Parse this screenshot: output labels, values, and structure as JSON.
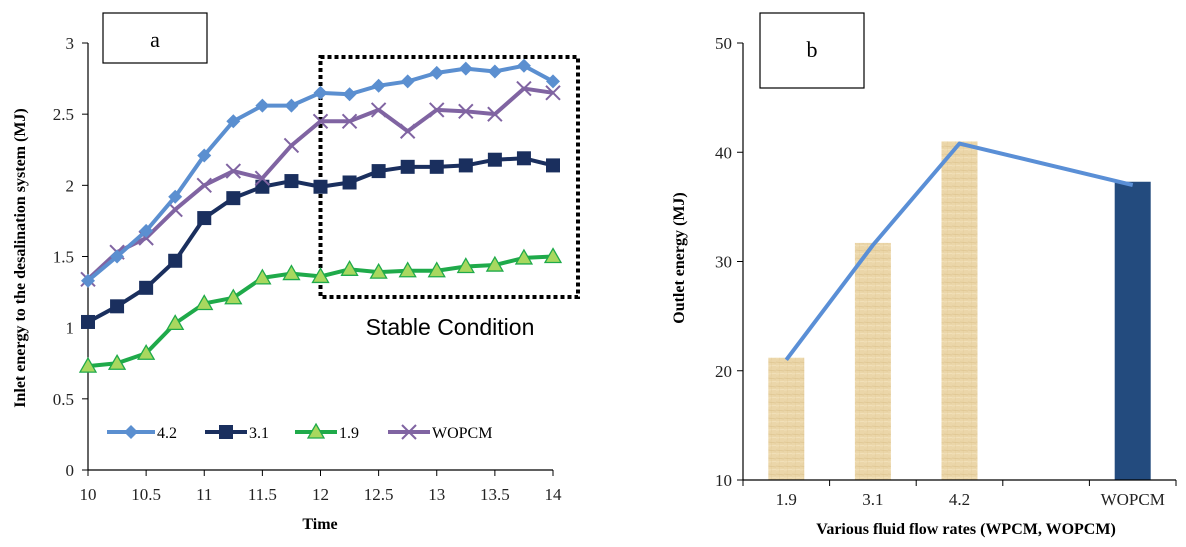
{
  "chart_data": [
    {
      "type": "line",
      "panel_label": "a",
      "xlabel": "Time",
      "ylabel": "Inlet energy to the desalination system (MJ)",
      "x": [
        10,
        10.25,
        10.5,
        10.75,
        11,
        11.25,
        11.5,
        11.75,
        12,
        12.25,
        12.5,
        12.75,
        13,
        13.25,
        13.5,
        13.75,
        14
      ],
      "xlim": [
        10,
        14
      ],
      "ylim": [
        0,
        3
      ],
      "xticks": [
        10,
        10.5,
        11,
        11.5,
        12,
        12.5,
        13,
        13.5,
        14
      ],
      "xtick_labels": [
        "10",
        "10.5",
        "11",
        "11.5",
        "12",
        "12.5",
        "13",
        "13.5",
        "14"
      ],
      "yticks": [
        0,
        0.5,
        1,
        1.5,
        2,
        2.5,
        3
      ],
      "ytick_labels": [
        "0",
        "0.5",
        "1",
        "1.5",
        "2",
        "2.5",
        "3"
      ],
      "grid": false,
      "legend_position": "bottom",
      "annotation": "Stable Condition",
      "stable_region": [
        12,
        14
      ],
      "series": [
        {
          "name": "4.2",
          "color": "#5B8FD0",
          "marker": "diamond",
          "values": [
            1.33,
            1.5,
            1.68,
            1.92,
            2.21,
            2.45,
            2.56,
            2.56,
            2.65,
            2.64,
            2.7,
            2.73,
            2.79,
            2.82,
            2.8,
            2.84,
            2.73
          ]
        },
        {
          "name": "3.1",
          "color": "#1A2F5E",
          "marker": "square",
          "values": [
            1.04,
            1.15,
            1.28,
            1.47,
            1.77,
            1.91,
            1.99,
            2.03,
            1.99,
            2.02,
            2.1,
            2.13,
            2.13,
            2.14,
            2.18,
            2.19,
            2.14
          ]
        },
        {
          "name": "1.9",
          "color": "#1FAA4A",
          "marker": "triangle",
          "values": [
            0.73,
            0.75,
            0.82,
            1.03,
            1.17,
            1.21,
            1.35,
            1.38,
            1.36,
            1.41,
            1.39,
            1.4,
            1.4,
            1.43,
            1.44,
            1.49,
            1.5
          ]
        },
        {
          "name": "WOPCM",
          "color": "#8064A2",
          "marker": "x",
          "values": [
            1.34,
            1.53,
            1.63,
            1.83,
            2.0,
            2.1,
            2.05,
            2.28,
            2.45,
            2.45,
            2.53,
            2.38,
            2.53,
            2.52,
            2.5,
            2.68,
            2.65
          ]
        }
      ]
    },
    {
      "type": "bar",
      "panel_label": "b",
      "xlabel": "Various fluid flow rates (WPCM, WOPCM)",
      "ylabel": "Outlet energy (MJ)",
      "categories": [
        "1.9",
        "3.1",
        "4.2",
        "",
        "WOPCM"
      ],
      "values": [
        21.2,
        31.7,
        41.0,
        null,
        37.3
      ],
      "bar_colors": [
        "#E9D4A6",
        "#E9D4A6",
        "#E9D4A6",
        "",
        "#234B7E"
      ],
      "line_values": [
        21.0,
        31.5,
        40.8,
        null,
        37.0
      ],
      "line_color": "#5A8FD6",
      "ylim": [
        10,
        50
      ],
      "yticks": [
        10,
        20,
        30,
        40,
        50
      ],
      "ytick_labels": [
        "10",
        "20",
        "30",
        "40",
        "50"
      ],
      "grid": false
    }
  ]
}
